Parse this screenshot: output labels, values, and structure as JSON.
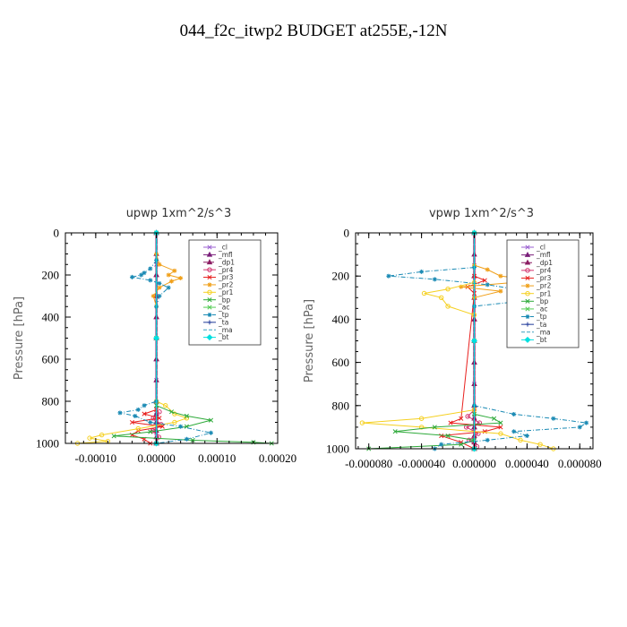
{
  "figure_title": "044_f2c_itwp2  BUDGET at255E,-12N",
  "chart_data": [
    {
      "type": "line",
      "title": "upwp    1xm^2/s^3",
      "ylabel": "Pressure  [hPa]",
      "xlim": [
        -0.00015,
        0.0002
      ],
      "ylim": [
        1000,
        0
      ],
      "xticks": [
        -0.0001,
        0.0,
        0.0001,
        0.0002
      ],
      "xtick_labels": [
        "-0.00010",
        "0.00000",
        "0.00010",
        "0.00020"
      ],
      "yticks": [
        0,
        200,
        400,
        600,
        800,
        1000
      ],
      "ytick_labels": [
        "0",
        "200",
        "400",
        "600",
        "800",
        "1000"
      ],
      "legend_position": "top-right",
      "series": [
        {
          "name": "_cl",
          "color": "#9a5fd0",
          "dash": "",
          "marker": "cross",
          "p": [
            0,
            150,
            300,
            500,
            700,
            850,
            900,
            950,
            1000
          ],
          "x": [
            0,
            0,
            0,
            0,
            0,
            0,
            0,
            0,
            0
          ]
        },
        {
          "name": "_mfl",
          "color": "#7a1f7a",
          "dash": "",
          "marker": "tri",
          "p": [
            0,
            200,
            400,
            600,
            800,
            900,
            1000
          ],
          "x": [
            0,
            0,
            0,
            0,
            0,
            0,
            0
          ]
        },
        {
          "name": "_dp1",
          "color": "#8b1c62",
          "dash": "5,2",
          "marker": "tri",
          "p": [
            0,
            100,
            200,
            300,
            400,
            500,
            600,
            700,
            800,
            860,
            900,
            940,
            970,
            1000
          ],
          "x": [
            0,
            0,
            0,
            0,
            0,
            0,
            0,
            0,
            0,
            0,
            0,
            0,
            0,
            0
          ]
        },
        {
          "name": "_pr4",
          "color": "#d2326e",
          "dash": "",
          "marker": "circle",
          "p": [
            850,
            880,
            910,
            940,
            970,
            1000
          ],
          "x": [
            5e-06,
            -5e-06,
            8e-06,
            -6e-06,
            4e-06,
            0
          ]
        },
        {
          "name": "_pr3",
          "color": "#e8201e",
          "dash": "",
          "marker": "cross",
          "p": [
            840,
            860,
            880,
            900,
            920,
            940,
            960,
            980,
            1000
          ],
          "x": [
            0,
            -2e-05,
            5e-06,
            -4e-05,
            1e-05,
            -3e-05,
            -4e-05,
            -2e-05,
            -1e-05
          ]
        },
        {
          "name": "_pr2",
          "color": "#f0a01a",
          "dash": "",
          "marker": "star",
          "p": [
            100,
            150,
            180,
            200,
            215,
            230,
            260,
            300,
            350
          ],
          "x": [
            0,
            5e-06,
            3e-05,
            2e-05,
            4e-05,
            2.5e-05,
            5e-06,
            -5e-06,
            0
          ]
        },
        {
          "name": "_pr1",
          "color": "#f5d020",
          "dash": "",
          "marker": "circle",
          "p": [
            800,
            820,
            860,
            880,
            900,
            930,
            960,
            975,
            990,
            1000
          ],
          "x": [
            0,
            1.5e-05,
            3e-05,
            5e-05,
            3e-05,
            -3e-05,
            -9e-05,
            -0.00011,
            -8e-05,
            -0.00013
          ]
        },
        {
          "name": "_bp",
          "color": "#2eaa3a",
          "dash": "",
          "marker": "cross",
          "p": [
            820,
            850,
            870,
            890,
            920,
            945,
            965,
            985,
            995,
            1000
          ],
          "x": [
            0,
            2.5e-05,
            5e-05,
            9e-05,
            5e-05,
            -1e-05,
            -7e-05,
            6e-05,
            0.00016,
            0.00019
          ]
        },
        {
          "name": "_ac",
          "color": "#55cc55",
          "dash": "",
          "marker": "cross",
          "p": [
            0,
            500,
            1000
          ],
          "x": [
            0,
            0,
            0
          ]
        },
        {
          "name": "_tp",
          "color": "#1a8ab4",
          "dash": "5,2,1,2",
          "marker": "star",
          "p": [
            0,
            130,
            170,
            190,
            200,
            210,
            225,
            240,
            260,
            300,
            350,
            800,
            820,
            840,
            855,
            870,
            900,
            920,
            950,
            980,
            1000
          ],
          "x": [
            0,
            0,
            -1e-05,
            -2e-05,
            -2.5e-05,
            -4e-05,
            -1e-05,
            5e-06,
            2e-05,
            5e-06,
            0,
            0,
            -2e-05,
            -3e-05,
            -6e-05,
            -3.5e-05,
            -1e-05,
            4e-05,
            9e-05,
            5e-05,
            0
          ]
        },
        {
          "name": "_ta",
          "color": "#203a9a",
          "dash": "",
          "marker": "plus",
          "p": [
            0,
            500,
            1000
          ],
          "x": [
            0,
            0,
            0
          ]
        },
        {
          "name": "_ma",
          "color": "#3aa0c0",
          "dash": "4,2",
          "marker": "",
          "p": [
            0,
            500,
            1000
          ],
          "x": [
            0,
            0,
            0
          ]
        },
        {
          "name": "_bt",
          "color": "#00e0e0",
          "dash": "",
          "marker": "diamond",
          "p": [
            0,
            500,
            1000
          ],
          "x": [
            0,
            0,
            0
          ]
        }
      ]
    },
    {
      "type": "line",
      "title": "vpwp    1xm^2/s^3",
      "ylabel": "Pressure  [hPa]",
      "xlim": [
        -9e-05,
        9e-05
      ],
      "ylim": [
        1000,
        0
      ],
      "xticks": [
        -8e-05,
        -4e-05,
        0.0,
        4e-05,
        8e-05
      ],
      "xtick_labels": [
        "-0.000080",
        "-0.000040",
        "0.000000",
        "0.000040",
        "0.000080"
      ],
      "yticks": [
        0,
        200,
        400,
        600,
        800,
        1000
      ],
      "ytick_labels": [
        "0",
        "200",
        "400",
        "600",
        "800",
        "1000"
      ],
      "legend_position": "top-right",
      "series": [
        {
          "name": "_cl",
          "color": "#9a5fd0",
          "dash": "",
          "marker": "cross",
          "p": [
            0,
            150,
            300,
            500,
            700,
            850,
            900,
            950,
            1000
          ],
          "x": [
            0,
            0,
            0,
            0,
            0,
            0,
            0,
            0,
            0
          ]
        },
        {
          "name": "_mfl",
          "color": "#7a1f7a",
          "dash": "",
          "marker": "tri",
          "p": [
            0,
            200,
            400,
            600,
            800,
            900,
            1000
          ],
          "x": [
            0,
            0,
            0,
            0,
            0,
            0,
            0
          ]
        },
        {
          "name": "_dp1",
          "color": "#8b1c62",
          "dash": "5,2",
          "marker": "tri",
          "p": [
            0,
            100,
            200,
            300,
            400,
            500,
            600,
            700,
            800,
            860,
            900,
            940,
            970,
            1000
          ],
          "x": [
            0,
            0,
            0,
            0,
            0,
            0,
            0,
            0,
            0,
            0,
            0,
            0,
            0,
            0
          ]
        },
        {
          "name": "_pr4",
          "color": "#d2326e",
          "dash": "",
          "marker": "circle",
          "p": [
            820,
            850,
            880,
            900,
            930,
            960,
            990,
            1000
          ],
          "x": [
            0,
            -5e-06,
            4e-06,
            -6e-06,
            3e-06,
            -4e-06,
            2e-06,
            0
          ]
        },
        {
          "name": "_pr3",
          "color": "#e8201e",
          "dash": "",
          "marker": "cross",
          "p": [
            200,
            220,
            250,
            280,
            860,
            880,
            900,
            920,
            940,
            970,
            1000
          ],
          "x": [
            0,
            8e-06,
            -5e-06,
            0,
            -1e-05,
            -1.8e-05,
            2e-05,
            8e-06,
            -2.5e-05,
            -1e-05,
            0
          ]
        },
        {
          "name": "_pr2",
          "color": "#f0a01a",
          "dash": "",
          "marker": "star",
          "p": [
            150,
            170,
            200,
            210,
            230,
            250,
            270,
            300
          ],
          "x": [
            0,
            1e-05,
            2e-05,
            3.5e-05,
            3e-05,
            -1e-05,
            2e-05,
            0
          ]
        },
        {
          "name": "_pr1",
          "color": "#f5d020",
          "dash": "",
          "marker": "circle",
          "p": [
            230,
            260,
            280,
            300,
            340,
            380,
            820,
            860,
            880,
            900,
            930,
            960,
            980,
            1000
          ],
          "x": [
            0,
            -2e-05,
            -3.8e-05,
            -2.5e-05,
            -2e-05,
            0,
            0,
            -4e-05,
            -8.5e-05,
            -4e-05,
            2e-05,
            3.5e-05,
            5e-05,
            6e-05
          ]
        },
        {
          "name": "_bp",
          "color": "#2eaa3a",
          "dash": "",
          "marker": "cross",
          "p": [
            840,
            860,
            880,
            900,
            920,
            940,
            960,
            980,
            1000
          ],
          "x": [
            0,
            1.5e-05,
            2e-05,
            -3e-05,
            -6e-05,
            -2e-05,
            0,
            -1e-05,
            -8e-05
          ]
        },
        {
          "name": "_ac",
          "color": "#55cc55",
          "dash": "",
          "marker": "cross",
          "p": [
            0,
            500,
            1000
          ],
          "x": [
            0,
            0,
            0
          ]
        },
        {
          "name": "_tp",
          "color": "#1a8ab4",
          "dash": "5,2,1,2",
          "marker": "star",
          "p": [
            160,
            180,
            200,
            215,
            240,
            270,
            300,
            320,
            340,
            800,
            840,
            860,
            880,
            900,
            920,
            940,
            960,
            980,
            1000
          ],
          "x": [
            0,
            -4e-05,
            -6.5e-05,
            -3e-05,
            1e-05,
            4e-05,
            4.5e-05,
            3e-05,
            0,
            0,
            3e-05,
            6e-05,
            8.5e-05,
            8e-05,
            3e-05,
            4e-05,
            1e-05,
            -2.5e-05,
            -3e-05
          ]
        },
        {
          "name": "_ta",
          "color": "#203a9a",
          "dash": "",
          "marker": "plus",
          "p": [
            0,
            500,
            1000
          ],
          "x": [
            0,
            0,
            0
          ]
        },
        {
          "name": "_ma",
          "color": "#3aa0c0",
          "dash": "4,2",
          "marker": "",
          "p": [
            0,
            500,
            1000
          ],
          "x": [
            0,
            0,
            0
          ]
        },
        {
          "name": "_bt",
          "color": "#00e0e0",
          "dash": "",
          "marker": "diamond",
          "p": [
            0,
            500,
            1000
          ],
          "x": [
            0,
            0,
            0
          ]
        }
      ]
    }
  ]
}
